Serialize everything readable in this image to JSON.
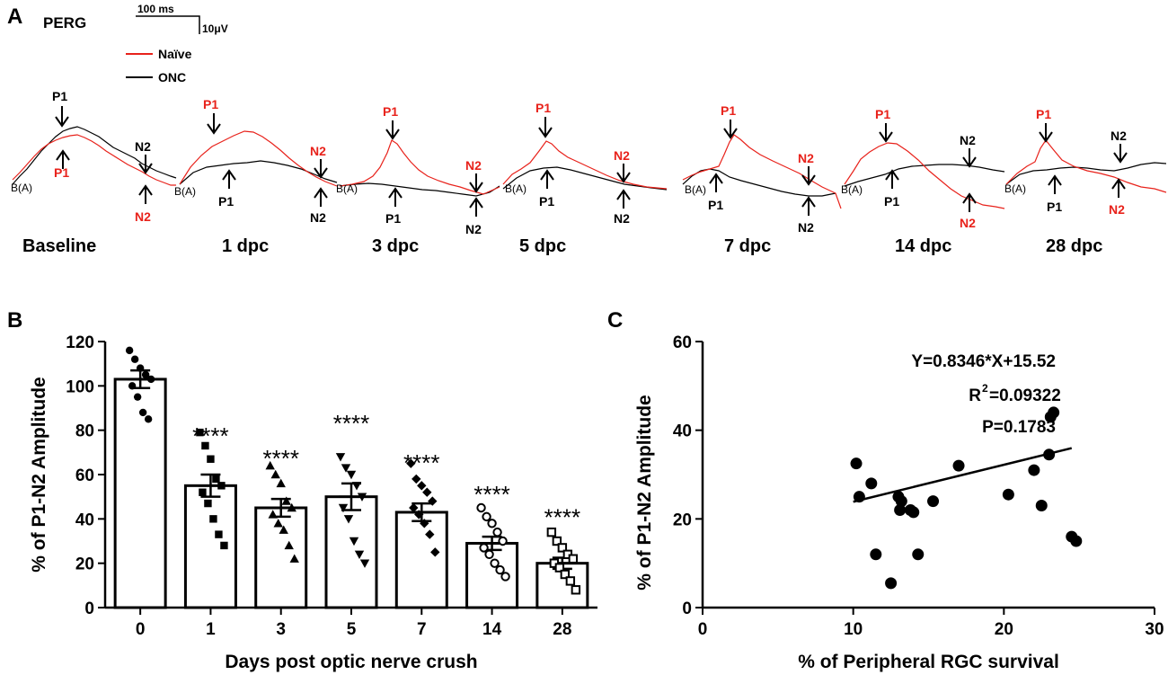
{
  "panel_a": {
    "letter": "A",
    "title": "PERG",
    "scalebar": {
      "time_label": "100 ms",
      "amp_label": "10μV"
    },
    "legend": [
      {
        "name": "Naïve",
        "color": "#e8221b"
      },
      {
        "name": "ONC",
        "color": "#000000"
      }
    ],
    "timepoints": [
      "Baseline",
      "1 dpc",
      "3 dpc",
      "5 dpc",
      "7 dpc",
      "14 dpc",
      "28 dpc"
    ],
    "peak_labels": {
      "p1": "P1",
      "n2": "N2",
      "baseline_marker": "B(A)"
    }
  },
  "panel_b_letter": "B",
  "panel_c_letter": "C",
  "chart_data": [
    {
      "type": "bar",
      "title": "",
      "xlabel": "Days post optic nerve crush",
      "ylabel": "% of P1-N2 Amplitude",
      "ylim": [
        0,
        120
      ],
      "yticks": [
        0,
        20,
        40,
        60,
        80,
        100,
        120
      ],
      "categories": [
        "0",
        "1",
        "3",
        "5",
        "7",
        "14",
        "28"
      ],
      "values": [
        103,
        55,
        45,
        50,
        43,
        29,
        20
      ],
      "sem": [
        4,
        5,
        4,
        6,
        4,
        3,
        2.5
      ],
      "significance": [
        "",
        "****",
        "****",
        "****",
        "****",
        "****",
        "****"
      ],
      "points": [
        [
          116,
          112,
          108,
          105,
          103,
          100,
          95,
          88,
          85
        ],
        [
          79,
          73,
          67,
          58,
          55,
          52,
          47,
          40,
          33,
          28
        ],
        [
          64,
          60,
          56,
          48,
          45,
          42,
          38,
          35,
          28,
          22
        ],
        [
          68,
          63,
          60,
          55,
          50,
          45,
          40,
          30,
          24,
          20
        ],
        [
          65,
          58,
          55,
          52,
          48,
          45,
          42,
          38,
          33,
          25
        ],
        [
          45,
          41,
          38,
          34,
          30,
          27,
          24,
          20,
          17,
          14
        ],
        [
          34,
          30,
          27,
          24,
          22,
          20,
          18,
          15,
          12,
          8
        ]
      ]
    },
    {
      "type": "scatter",
      "title": "",
      "xlabel": "% of Peripheral RGC survival",
      "ylabel": "% of P1-N2 Amplitude",
      "xlim": [
        0,
        30
      ],
      "ylim": [
        0,
        60
      ],
      "xticks": [
        0,
        10,
        20,
        30
      ],
      "yticks": [
        0,
        20,
        40,
        60
      ],
      "points": [
        [
          10.2,
          32.5
        ],
        [
          10.4,
          25
        ],
        [
          11.2,
          28
        ],
        [
          11.5,
          12
        ],
        [
          12.5,
          5.5
        ],
        [
          13,
          25
        ],
        [
          13.2,
          24
        ],
        [
          13.1,
          22
        ],
        [
          13.8,
          22
        ],
        [
          14,
          21.5
        ],
        [
          14.3,
          12
        ],
        [
          15.3,
          24
        ],
        [
          17,
          32
        ],
        [
          20.3,
          25.5
        ],
        [
          22,
          31
        ],
        [
          22.5,
          23
        ],
        [
          23,
          34.5
        ],
        [
          23.1,
          43
        ],
        [
          23.3,
          44
        ],
        [
          24.5,
          16
        ],
        [
          24.8,
          15
        ]
      ],
      "fit": {
        "slope": 0.8346,
        "intercept": 15.52,
        "x_range": [
          10,
          24.5
        ]
      },
      "annotations": {
        "equation": "Y=0.8346*X+15.52",
        "r2_text": "R",
        "r2_sup": "2",
        "r2_value": "=0.09322",
        "p_text": "P=0.1783"
      }
    }
  ]
}
